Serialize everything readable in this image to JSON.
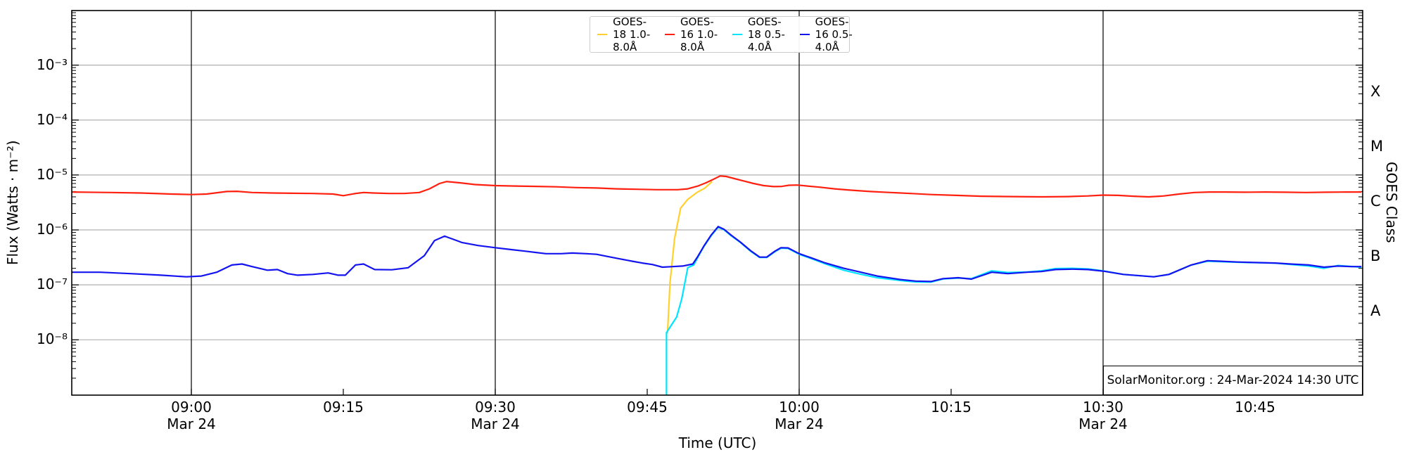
{
  "attribution": "SolarMonitor.org : 24-Mar-2024 14:30 UTC",
  "colors": {
    "background": "#ffffff",
    "spine": "#000000",
    "decade_gridline": "#b0b0b0",
    "time_gridline": "#111111",
    "goes18_long": "#ffd02e",
    "goes16_long": "#ff2010",
    "goes18_short": "#00e5ff",
    "goes16_short": "#1414f0"
  },
  "chart_data": {
    "type": "line",
    "title": "",
    "xlabel": "Time (UTC)",
    "ylabel": "Flux (Watts · m⁻²)",
    "ylabel_right": "GOES Class",
    "x_unit": "minutes after 09:00 UTC on Mar 24",
    "xlim_minutes": [
      -11.8,
      115.6
    ],
    "ylog": true,
    "ylim_log10": [
      -9.0,
      -2.0
    ],
    "grid": {
      "h_decades": [
        -3,
        -4,
        -5,
        -6,
        -7,
        -8
      ],
      "v_minutes": [
        0,
        30,
        60,
        90
      ]
    },
    "y_tick_exponents": [
      -3,
      -4,
      -5,
      -6,
      -7,
      -8
    ],
    "x_ticks": [
      {
        "t": 0,
        "label": "09:00",
        "date": "Mar 24"
      },
      {
        "t": 15,
        "label": "09:15",
        "date": ""
      },
      {
        "t": 30,
        "label": "09:30",
        "date": "Mar 24"
      },
      {
        "t": 45,
        "label": "09:45",
        "date": ""
      },
      {
        "t": 60,
        "label": "10:00",
        "date": "Mar 24"
      },
      {
        "t": 75,
        "label": "10:15",
        "date": ""
      },
      {
        "t": 90,
        "label": "10:30",
        "date": "Mar 24"
      },
      {
        "t": 105,
        "label": "10:45",
        "date": ""
      }
    ],
    "right_classes": [
      {
        "label": "X",
        "log10_center": -3.5
      },
      {
        "label": "M",
        "log10_center": -4.5
      },
      {
        "label": "C",
        "log10_center": -5.5
      },
      {
        "label": "B",
        "log10_center": -6.5
      },
      {
        "label": "A",
        "log10_center": -7.5
      }
    ],
    "legend": {
      "position": "top-center",
      "entries": [
        {
          "label": "GOES-18 1.0-8.0Å",
          "color_key": "goes18_long"
        },
        {
          "label": "GOES-16 1.0-8.0Å",
          "color_key": "goes16_long"
        },
        {
          "label": "GOES-18 0.5-4.0Å",
          "color_key": "goes18_short"
        },
        {
          "label": "GOES-16 0.5-4.0Å",
          "color_key": "goes16_short"
        }
      ]
    },
    "series": [
      {
        "name": "GOES-18 1.0-8.0Å",
        "color_key": "goes18_long",
        "points": [
          [
            47.0,
            1.3e-08
          ],
          [
            47.25,
            1.1e-07
          ],
          [
            47.7,
            7e-07
          ],
          [
            48.3,
            2.5e-06
          ],
          [
            49.0,
            3.6e-06
          ],
          [
            49.9,
            4.8e-06
          ],
          [
            50.7,
            5.8e-06
          ],
          [
            51.4,
            7.6e-06
          ]
        ]
      },
      {
        "name": "GOES-16 1.0-8.0Å",
        "color_key": "goes16_long",
        "points": [
          [
            -11.8,
            4.9e-06
          ],
          [
            -8,
            4.8e-06
          ],
          [
            -5,
            4.7e-06
          ],
          [
            -2,
            4.5e-06
          ],
          [
            0,
            4.4e-06
          ],
          [
            1.5,
            4.5e-06
          ],
          [
            3.5,
            5e-06
          ],
          [
            4.5,
            5.05e-06
          ],
          [
            6,
            4.8e-06
          ],
          [
            8,
            4.7e-06
          ],
          [
            10,
            4.65e-06
          ],
          [
            12,
            4.6e-06
          ],
          [
            14,
            4.5e-06
          ],
          [
            15,
            4.2e-06
          ],
          [
            16.2,
            4.6e-06
          ],
          [
            17,
            4.8e-06
          ],
          [
            18,
            4.7e-06
          ],
          [
            19.5,
            4.6e-06
          ],
          [
            21,
            4.6e-06
          ],
          [
            22.5,
            4.8e-06
          ],
          [
            23.5,
            5.6e-06
          ],
          [
            24.5,
            7e-06
          ],
          [
            25.2,
            7.6e-06
          ],
          [
            26.5,
            7.2e-06
          ],
          [
            28,
            6.7e-06
          ],
          [
            30,
            6.4e-06
          ],
          [
            32,
            6.3e-06
          ],
          [
            34,
            6.2e-06
          ],
          [
            36,
            6.1e-06
          ],
          [
            38,
            5.9e-06
          ],
          [
            40,
            5.8e-06
          ],
          [
            42,
            5.6e-06
          ],
          [
            44,
            5.5e-06
          ],
          [
            46,
            5.4e-06
          ],
          [
            48,
            5.4e-06
          ],
          [
            49,
            5.6e-06
          ],
          [
            50,
            6.3e-06
          ],
          [
            50.8,
            7.2e-06
          ],
          [
            51.5,
            8.3e-06
          ],
          [
            52.2,
            9.6e-06
          ],
          [
            52.8,
            9.4e-06
          ],
          [
            53.6,
            8.6e-06
          ],
          [
            54.5,
            7.8e-06
          ],
          [
            55.5,
            7e-06
          ],
          [
            56.5,
            6.4e-06
          ],
          [
            57.5,
            6.15e-06
          ],
          [
            58.3,
            6.2e-06
          ],
          [
            59,
            6.5e-06
          ],
          [
            59.8,
            6.55e-06
          ],
          [
            60.8,
            6.3e-06
          ],
          [
            62,
            6e-06
          ],
          [
            63.5,
            5.6e-06
          ],
          [
            65,
            5.3e-06
          ],
          [
            67,
            5e-06
          ],
          [
            69,
            4.8e-06
          ],
          [
            71,
            4.6e-06
          ],
          [
            73,
            4.4e-06
          ],
          [
            75.5,
            4.25e-06
          ],
          [
            78,
            4.1e-06
          ],
          [
            81,
            4.05e-06
          ],
          [
            84,
            4e-06
          ],
          [
            86.5,
            4.05e-06
          ],
          [
            88.5,
            4.15e-06
          ],
          [
            90,
            4.3e-06
          ],
          [
            91.5,
            4.25e-06
          ],
          [
            93,
            4.1e-06
          ],
          [
            94.5,
            4e-06
          ],
          [
            96,
            4.15e-06
          ],
          [
            97.5,
            4.5e-06
          ],
          [
            99,
            4.8e-06
          ],
          [
            100.5,
            4.9e-06
          ],
          [
            102,
            4.9e-06
          ],
          [
            104,
            4.85e-06
          ],
          [
            106,
            4.9e-06
          ],
          [
            108,
            4.85e-06
          ],
          [
            110,
            4.8e-06
          ],
          [
            112,
            4.85e-06
          ],
          [
            114,
            4.9e-06
          ],
          [
            115.5,
            4.9e-06
          ]
        ]
      },
      {
        "name": "GOES-18 0.5-4.0Å",
        "color_key": "goes18_short",
        "points": [
          [
            46.9,
            9e-10
          ],
          [
            46.9,
            1.35e-08
          ],
          [
            47.9,
            2.6e-08
          ],
          [
            48.4,
            5.5e-08
          ],
          [
            49.0,
            2.05e-07
          ],
          [
            49.6,
            2.3e-07
          ],
          [
            50,
            3.2e-07
          ],
          [
            50.6,
            5e-07
          ],
          [
            51.3,
            7.8e-07
          ],
          [
            52,
            1.12e-06
          ],
          [
            52.6,
            1e-06
          ],
          [
            53.3,
            7.8e-07
          ],
          [
            54.2,
            5.9e-07
          ],
          [
            55.2,
            4.1e-07
          ],
          [
            56.1,
            3.15e-07
          ],
          [
            56.8,
            3.15e-07
          ],
          [
            57.6,
            4e-07
          ],
          [
            58.2,
            4.65e-07
          ],
          [
            58.9,
            4.6e-07
          ],
          [
            60,
            3.6e-07
          ],
          [
            61.2,
            3e-07
          ],
          [
            62.6,
            2.4e-07
          ],
          [
            64.4,
            1.85e-07
          ],
          [
            65.8,
            1.6e-07
          ],
          [
            67.7,
            1.35e-07
          ],
          [
            70,
            1.2e-07
          ],
          [
            71.5,
            1.13e-07
          ],
          [
            73,
            1.12e-07
          ],
          [
            74.2,
            1.28e-07
          ],
          [
            75.7,
            1.33e-07
          ],
          [
            77,
            1.3e-07
          ],
          [
            79,
            1.8e-07
          ],
          [
            80.6,
            1.68e-07
          ],
          [
            82.5,
            1.72e-07
          ],
          [
            83.9,
            1.8e-07
          ],
          [
            85.3,
            1.98e-07
          ],
          [
            87,
            2e-07
          ],
          [
            88.5,
            1.95e-07
          ],
          [
            90,
            1.8e-07
          ],
          [
            92,
            1.55e-07
          ],
          [
            95,
            1.4e-07
          ],
          [
            96.5,
            1.55e-07
          ],
          [
            98.7,
            2.3e-07
          ],
          [
            100.3,
            2.7e-07
          ],
          [
            103.3,
            2.58e-07
          ],
          [
            107,
            2.48e-07
          ],
          [
            110.3,
            2.2e-07
          ],
          [
            111.8,
            2e-07
          ],
          [
            113.2,
            2.25e-07
          ],
          [
            115.5,
            2.1e-07
          ]
        ]
      },
      {
        "name": "GOES-16 0.5-4.0Å",
        "color_key": "goes16_short",
        "points": [
          [
            -11.8,
            1.7e-07
          ],
          [
            -9,
            1.7e-07
          ],
          [
            -6,
            1.6e-07
          ],
          [
            -3,
            1.5e-07
          ],
          [
            -0.5,
            1.4e-07
          ],
          [
            1,
            1.45e-07
          ],
          [
            2.5,
            1.7e-07
          ],
          [
            4,
            2.3e-07
          ],
          [
            5,
            2.4e-07
          ],
          [
            6,
            2.15e-07
          ],
          [
            7.5,
            1.85e-07
          ],
          [
            8.5,
            1.9e-07
          ],
          [
            9.5,
            1.6e-07
          ],
          [
            10.5,
            1.5e-07
          ],
          [
            12,
            1.55e-07
          ],
          [
            13.5,
            1.65e-07
          ],
          [
            14.5,
            1.5e-07
          ],
          [
            15.2,
            1.5e-07
          ],
          [
            16.2,
            2.3e-07
          ],
          [
            17,
            2.4e-07
          ],
          [
            18.1,
            1.9e-07
          ],
          [
            19.8,
            1.88e-07
          ],
          [
            21.4,
            2.05e-07
          ],
          [
            23,
            3.4e-07
          ],
          [
            24,
            6.4e-07
          ],
          [
            25,
            7.7e-07
          ],
          [
            26,
            6.6e-07
          ],
          [
            26.7,
            5.9e-07
          ],
          [
            28.3,
            5.2e-07
          ],
          [
            30,
            4.75e-07
          ],
          [
            31.5,
            4.4e-07
          ],
          [
            33,
            4.1e-07
          ],
          [
            35,
            3.7e-07
          ],
          [
            36.5,
            3.7e-07
          ],
          [
            37.6,
            3.8e-07
          ],
          [
            39,
            3.7e-07
          ],
          [
            40,
            3.6e-07
          ],
          [
            41,
            3.3e-07
          ],
          [
            42.2,
            3e-07
          ],
          [
            43.5,
            2.7e-07
          ],
          [
            44.5,
            2.5e-07
          ],
          [
            45.5,
            2.35e-07
          ],
          [
            46.5,
            2.1e-07
          ],
          [
            47.5,
            2.15e-07
          ],
          [
            48.5,
            2.2e-07
          ],
          [
            49.5,
            2.4e-07
          ],
          [
            50,
            3.3e-07
          ],
          [
            50.6,
            5.1e-07
          ],
          [
            51.3,
            8e-07
          ],
          [
            52,
            1.15e-06
          ],
          [
            52.6,
            1.02e-06
          ],
          [
            53.3,
            8e-07
          ],
          [
            54.2,
            6e-07
          ],
          [
            55.2,
            4.2e-07
          ],
          [
            56.1,
            3.2e-07
          ],
          [
            56.8,
            3.2e-07
          ],
          [
            57.6,
            4.1e-07
          ],
          [
            58.2,
            4.75e-07
          ],
          [
            58.9,
            4.7e-07
          ],
          [
            60,
            3.7e-07
          ],
          [
            61.2,
            3.1e-07
          ],
          [
            62.6,
            2.5e-07
          ],
          [
            64.4,
            2e-07
          ],
          [
            65.8,
            1.75e-07
          ],
          [
            67.7,
            1.45e-07
          ],
          [
            70,
            1.25e-07
          ],
          [
            71.5,
            1.17e-07
          ],
          [
            73,
            1.15e-07
          ],
          [
            74.2,
            1.3e-07
          ],
          [
            75.7,
            1.35e-07
          ],
          [
            77,
            1.27e-07
          ],
          [
            79,
            1.7e-07
          ],
          [
            80.6,
            1.6e-07
          ],
          [
            82.5,
            1.7e-07
          ],
          [
            83.9,
            1.75e-07
          ],
          [
            85.3,
            1.9e-07
          ],
          [
            87,
            1.93e-07
          ],
          [
            88.5,
            1.9e-07
          ],
          [
            90,
            1.78e-07
          ],
          [
            92,
            1.55e-07
          ],
          [
            95,
            1.4e-07
          ],
          [
            96.5,
            1.55e-07
          ],
          [
            98.7,
            2.3e-07
          ],
          [
            100.3,
            2.75e-07
          ],
          [
            101.5,
            2.7e-07
          ],
          [
            103.3,
            2.6e-07
          ],
          [
            105,
            2.55e-07
          ],
          [
            107,
            2.5e-07
          ],
          [
            108.5,
            2.4e-07
          ],
          [
            110.3,
            2.3e-07
          ],
          [
            111.8,
            2.1e-07
          ],
          [
            113.2,
            2.2e-07
          ],
          [
            114.5,
            2.15e-07
          ],
          [
            115.5,
            2.15e-07
          ]
        ]
      }
    ]
  }
}
